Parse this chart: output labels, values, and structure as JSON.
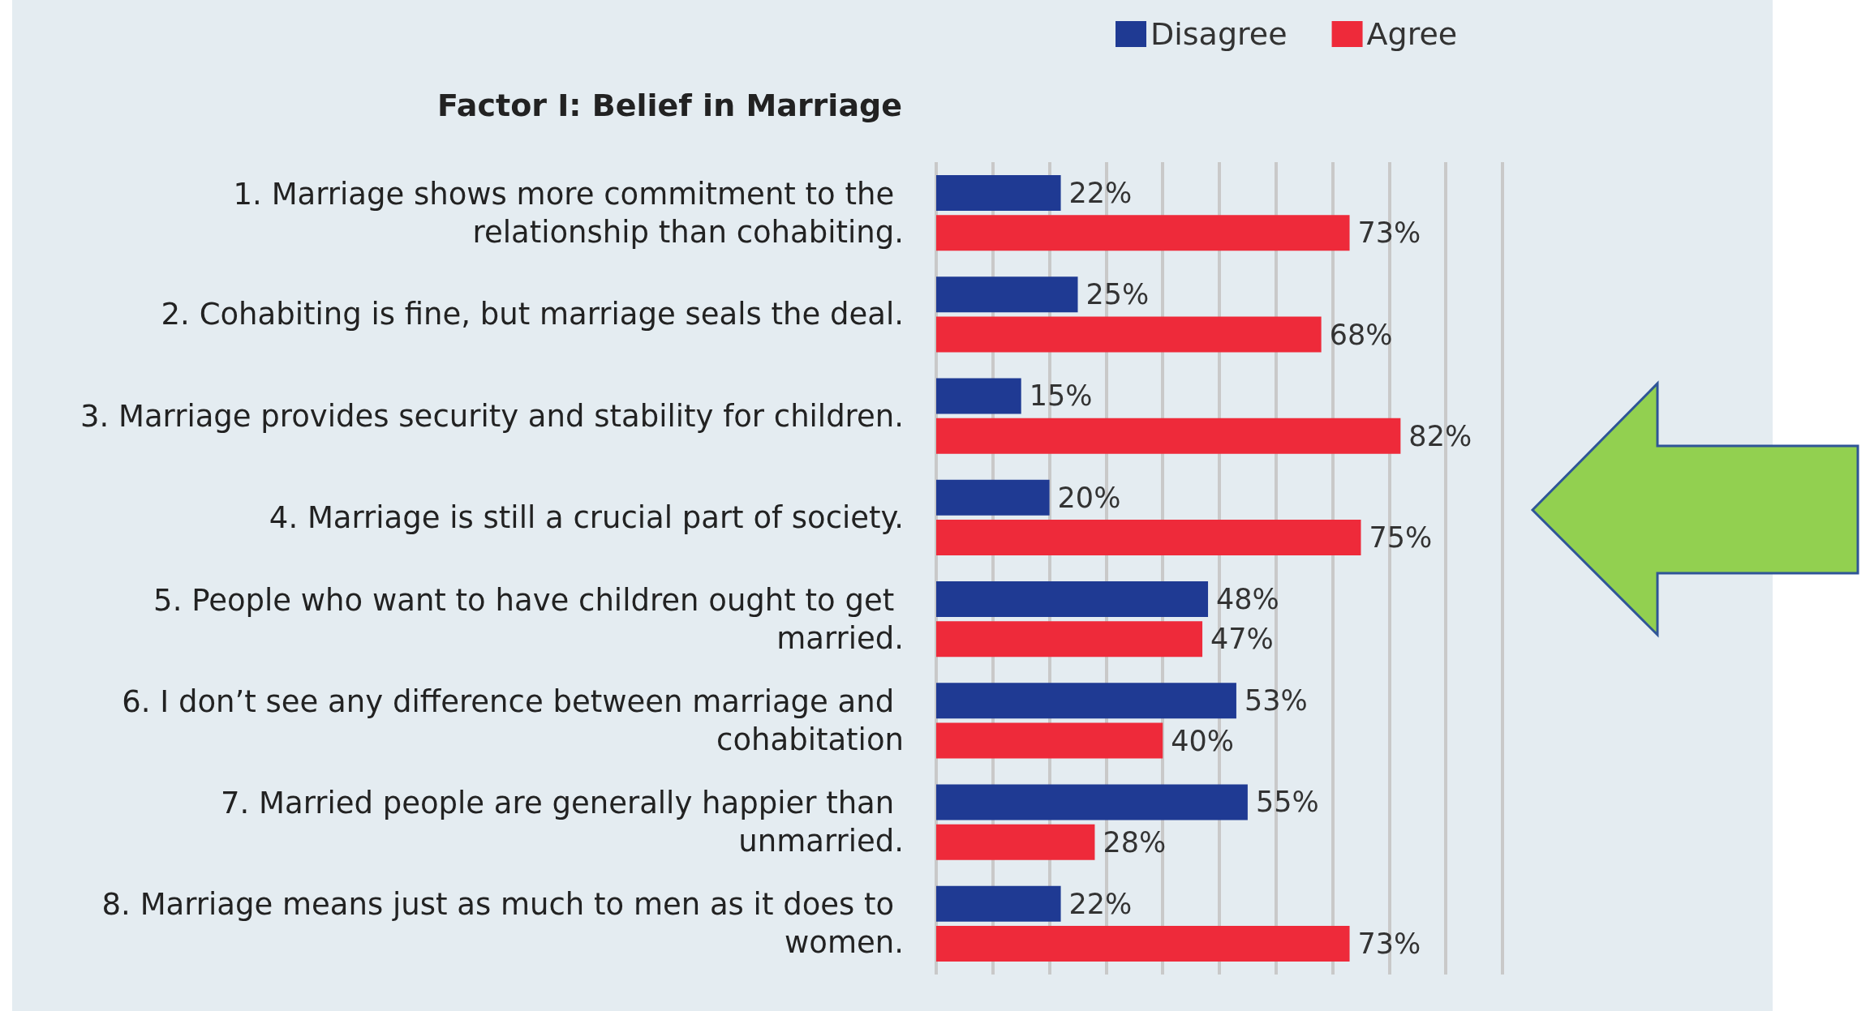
{
  "chart_data": {
    "type": "bar",
    "orientation": "horizontal",
    "title": "Factor I: Belief in Marriage",
    "categories": [
      "1. Marriage shows more commitment to the relationship than cohabiting.",
      "2. Cohabiting is fine, but marriage seals the deal.",
      "3. Marriage provides security and stability for children.",
      "4. Marriage is still a crucial part of society.",
      "5. People who want to have children ought to get married.",
      "6. I don’t see any difference between marriage and cohabitation",
      "7. Married people are generally happier than unmarried.",
      "8. Marriage means just as much to men as it does to women."
    ],
    "series": [
      {
        "name": "Disagree",
        "color": "#1f3a93",
        "values": [
          22,
          25,
          15,
          20,
          48,
          53,
          55,
          22
        ],
        "value_labels": [
          "22%",
          "25%",
          "15%",
          "20%",
          "48%",
          "53%",
          "55%",
          "22%"
        ]
      },
      {
        "name": "Agree",
        "color": "#ee2a3a",
        "values": [
          73,
          68,
          82,
          75,
          47,
          40,
          28,
          73
        ],
        "value_labels": [
          "73%",
          "68%",
          "82%",
          "75%",
          "47%",
          "40%",
          "28%",
          "73%"
        ]
      }
    ],
    "xlim": [
      0,
      100
    ],
    "xticks": [
      {
        "value": 0,
        "label": null
      },
      {
        "value": 10,
        "label": null
      },
      {
        "value": 20,
        "label": null
      },
      {
        "value": 30,
        "label": null
      },
      {
        "value": 40,
        "label": null
      },
      {
        "value": 50,
        "label": null
      },
      {
        "value": 60,
        "label": null
      },
      {
        "value": 70,
        "label": null
      },
      {
        "value": 80,
        "label": null
      },
      {
        "value": 90,
        "label": null
      },
      {
        "value": 100,
        "label": null
      }
    ],
    "grid": "x",
    "legend": "top",
    "tick_labels": "y"
  }
}
